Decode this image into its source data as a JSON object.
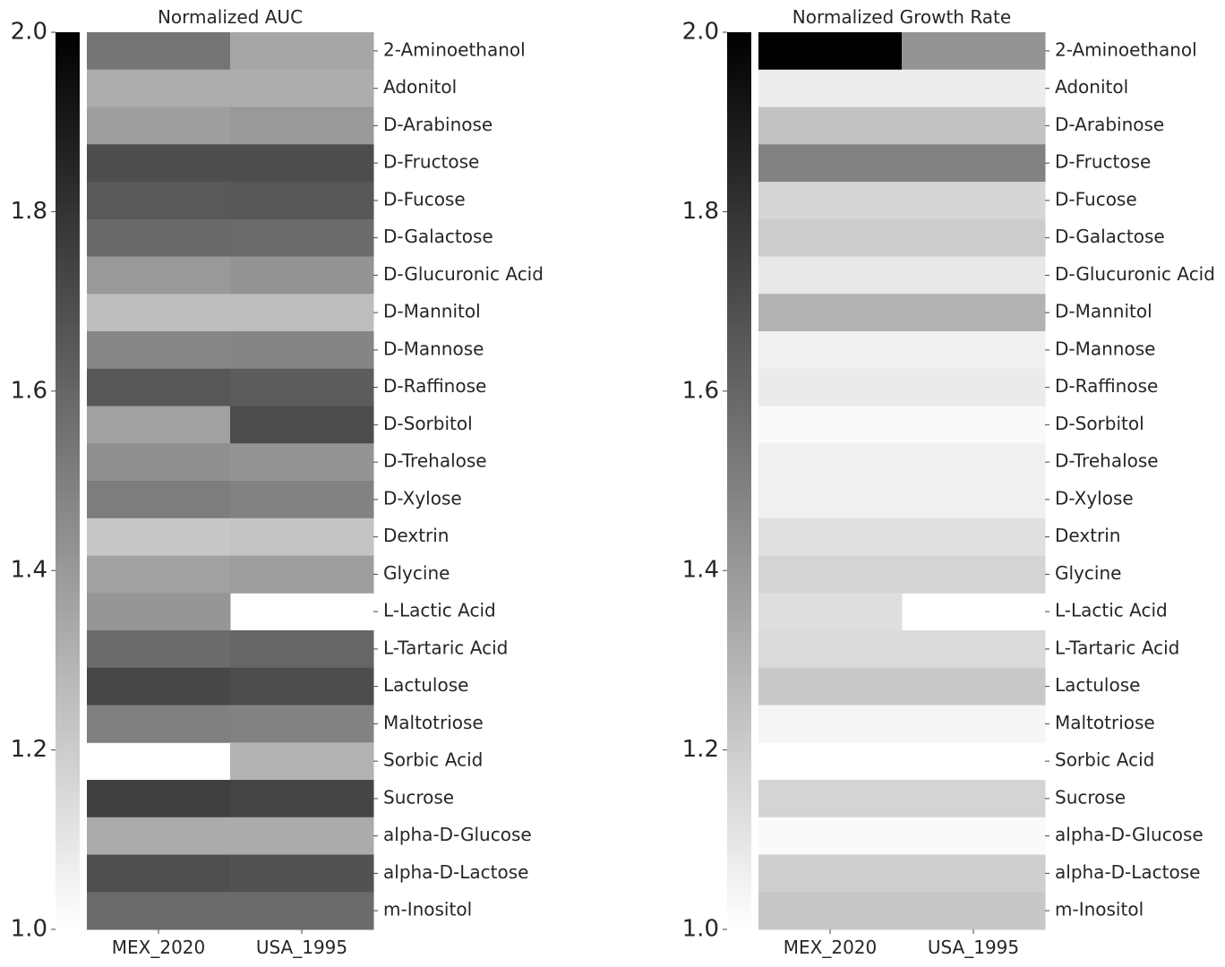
{
  "chart_data": [
    {
      "type": "heatmap",
      "title": "Normalized AUC",
      "columns": [
        "MEX_2020",
        "USA_1995"
      ],
      "rows": [
        "2-Aminoethanol",
        "Adonitol",
        "D-Arabinose",
        "D-Fructose",
        "D-Fucose",
        "D-Galactose",
        "D-Glucuronic Acid",
        "D-Mannitol",
        "D-Mannose",
        "D-Raffinose",
        "D-Sorbitol",
        "D-Trehalose",
        "D-Xylose",
        "Dextrin",
        "Glycine",
        "L-Lactic Acid",
        "L-Tartaric Acid",
        "Lactulose",
        "Maltotriose",
        "Sorbic Acid",
        "Sucrose",
        "alpha-D-Glucose",
        "alpha-D-Lactose",
        "m-Inositol"
      ],
      "values": [
        [
          1.54,
          1.35
        ],
        [
          1.32,
          1.32
        ],
        [
          1.38,
          1.4
        ],
        [
          1.7,
          1.7
        ],
        [
          1.65,
          1.66
        ],
        [
          1.59,
          1.58
        ],
        [
          1.4,
          1.42
        ],
        [
          1.26,
          1.26
        ],
        [
          1.47,
          1.48
        ],
        [
          1.66,
          1.64
        ],
        [
          1.37,
          1.7
        ],
        [
          1.44,
          1.42
        ],
        [
          1.51,
          1.49
        ],
        [
          1.22,
          1.23
        ],
        [
          1.37,
          1.38
        ],
        [
          1.41,
          null
        ],
        [
          1.58,
          1.6
        ],
        [
          1.72,
          1.7
        ],
        [
          1.5,
          1.49
        ],
        [
          null,
          1.3
        ],
        [
          1.75,
          1.73
        ],
        [
          1.33,
          1.33
        ],
        [
          1.69,
          1.68
        ],
        [
          1.58,
          1.58
        ]
      ],
      "colorbar": {
        "min": 1.0,
        "max": 2.0,
        "ticks": [
          "2.0",
          "1.8",
          "1.6",
          "1.4",
          "1.2",
          "1.0"
        ],
        "color_low": "#ffffff",
        "color_high": "#000000"
      }
    },
    {
      "type": "heatmap",
      "title": "Normalized Growth Rate",
      "columns": [
        "MEX_2020",
        "USA_1995"
      ],
      "rows": [
        "2-Aminoethanol",
        "Adonitol",
        "D-Arabinose",
        "D-Fructose",
        "D-Fucose",
        "D-Galactose",
        "D-Glucuronic Acid",
        "D-Mannitol",
        "D-Mannose",
        "D-Raffinose",
        "D-Sorbitol",
        "D-Trehalose",
        "D-Xylose",
        "Dextrin",
        "Glycine",
        "L-Lactic Acid",
        "L-Tartaric Acid",
        "Lactulose",
        "Maltotriose",
        "Sorbic Acid",
        "Sucrose",
        "alpha-D-Glucose",
        "alpha-D-Lactose",
        "m-Inositol"
      ],
      "values": [
        [
          2.0,
          1.42
        ],
        [
          1.07,
          1.07
        ],
        [
          1.24,
          1.24
        ],
        [
          1.49,
          1.49
        ],
        [
          1.16,
          1.16
        ],
        [
          1.2,
          1.2
        ],
        [
          1.09,
          1.09
        ],
        [
          1.3,
          1.3
        ],
        [
          1.06,
          1.06
        ],
        [
          1.08,
          1.08
        ],
        [
          1.02,
          1.02
        ],
        [
          1.06,
          1.06
        ],
        [
          1.06,
          1.06
        ],
        [
          1.12,
          1.12
        ],
        [
          1.17,
          1.17
        ],
        [
          1.13,
          null
        ],
        [
          1.14,
          1.14
        ],
        [
          1.21,
          1.21
        ],
        [
          1.04,
          1.04
        ],
        [
          null,
          null
        ],
        [
          1.17,
          1.17
        ],
        [
          1.02,
          1.02
        ],
        [
          1.19,
          1.19
        ],
        [
          1.22,
          1.22
        ]
      ],
      "colorbar": {
        "min": 1.0,
        "max": 2.0,
        "ticks": [
          "2.0",
          "1.8",
          "1.6",
          "1.4",
          "1.2",
          "1.0"
        ],
        "color_low": "#ffffff",
        "color_high": "#000000"
      }
    }
  ]
}
